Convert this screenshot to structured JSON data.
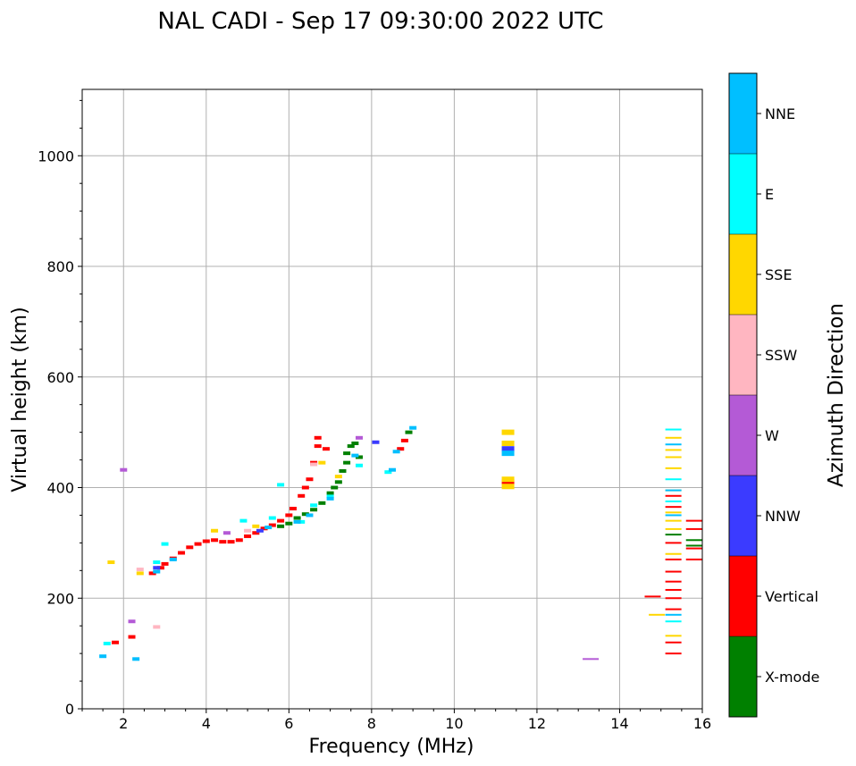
{
  "chart_data": {
    "type": "scatter",
    "title": "NAL CADI - Sep 17 09:30:00 2022 UTC",
    "xlabel": "Frequency (MHz)",
    "ylabel": "Virtual height (km)",
    "xlim": [
      1,
      16
    ],
    "ylim": [
      0,
      1120
    ],
    "x_ticks": [
      2,
      4,
      6,
      8,
      10,
      12,
      14,
      16
    ],
    "y_ticks": [
      0,
      200,
      400,
      600,
      800,
      1000
    ],
    "grid": true,
    "colorbar": {
      "title": "Azimuth Direction",
      "categories": [
        {
          "name": "X-mode",
          "color": "#008000"
        },
        {
          "name": "Vertical",
          "color": "#ff0000"
        },
        {
          "name": "NNW",
          "color": "#3b3bff"
        },
        {
          "name": "W",
          "color": "#b45ad6"
        },
        {
          "name": "SSW",
          "color": "#ffb6c1"
        },
        {
          "name": "SSE",
          "color": "#ffd700"
        },
        {
          "name": "E",
          "color": "#00ffff"
        },
        {
          "name": "NNE",
          "color": "#00bfff"
        }
      ]
    },
    "series": [
      {
        "name": "X-mode",
        "points": [
          [
            5.8,
            330
          ],
          [
            6.0,
            335
          ],
          [
            6.2,
            345
          ],
          [
            6.4,
            352
          ],
          [
            6.6,
            360
          ],
          [
            6.8,
            372
          ],
          [
            7.0,
            390
          ],
          [
            7.1,
            400
          ],
          [
            7.2,
            410
          ],
          [
            7.3,
            430
          ],
          [
            7.4,
            445
          ],
          [
            7.4,
            462
          ],
          [
            7.5,
            475
          ],
          [
            7.6,
            480
          ],
          [
            7.7,
            455
          ],
          [
            8.9,
            500
          ],
          [
            15.3,
            315
          ],
          [
            15.8,
            305
          ],
          [
            15.8,
            295
          ]
        ]
      },
      {
        "name": "Vertical",
        "points": [
          [
            2.7,
            245
          ],
          [
            2.9,
            255
          ],
          [
            3.0,
            262
          ],
          [
            3.2,
            272
          ],
          [
            3.4,
            282
          ],
          [
            3.6,
            292
          ],
          [
            3.8,
            298
          ],
          [
            4.0,
            303
          ],
          [
            4.2,
            305
          ],
          [
            4.4,
            302
          ],
          [
            4.6,
            302
          ],
          [
            4.8,
            305
          ],
          [
            5.0,
            312
          ],
          [
            5.2,
            318
          ],
          [
            5.4,
            326
          ],
          [
            5.6,
            332
          ],
          [
            5.8,
            340
          ],
          [
            6.0,
            350
          ],
          [
            6.1,
            362
          ],
          [
            6.3,
            385
          ],
          [
            6.4,
            400
          ],
          [
            6.5,
            415
          ],
          [
            6.6,
            445
          ],
          [
            6.7,
            475
          ],
          [
            6.7,
            490
          ],
          [
            6.9,
            470
          ],
          [
            8.7,
            470
          ],
          [
            8.8,
            485
          ],
          [
            11.3,
            410
          ],
          [
            14.8,
            203
          ],
          [
            15.3,
            100
          ],
          [
            15.3,
            120
          ],
          [
            15.3,
            180
          ],
          [
            15.3,
            200
          ],
          [
            15.3,
            215
          ],
          [
            15.3,
            230
          ],
          [
            15.3,
            248
          ],
          [
            15.3,
            270
          ],
          [
            15.3,
            300
          ],
          [
            15.3,
            365
          ],
          [
            15.3,
            385
          ],
          [
            15.8,
            270
          ],
          [
            15.8,
            290
          ],
          [
            15.8,
            325
          ],
          [
            15.8,
            340
          ],
          [
            1.8,
            120
          ],
          [
            2.2,
            130
          ]
        ]
      },
      {
        "name": "NNW",
        "points": [
          [
            2.8,
            255
          ],
          [
            5.3,
            322
          ],
          [
            8.1,
            482
          ],
          [
            11.3,
            470
          ]
        ]
      },
      {
        "name": "W",
        "points": [
          [
            2.0,
            432
          ],
          [
            2.2,
            158
          ],
          [
            4.5,
            318
          ],
          [
            7.7,
            490
          ],
          [
            13.3,
            90
          ]
        ]
      },
      {
        "name": "SSW",
        "points": [
          [
            2.4,
            252
          ],
          [
            2.8,
            148
          ],
          [
            5.0,
            322
          ],
          [
            6.6,
            442
          ]
        ]
      },
      {
        "name": "SSE",
        "points": [
          [
            1.7,
            265
          ],
          [
            2.4,
            245
          ],
          [
            4.2,
            322
          ],
          [
            5.2,
            330
          ],
          [
            6.8,
            445
          ],
          [
            7.2,
            420
          ],
          [
            11.3,
            480
          ],
          [
            11.3,
            500
          ],
          [
            11.3,
            415
          ],
          [
            11.3,
            402
          ],
          [
            14.9,
            170
          ],
          [
            15.3,
            132
          ],
          [
            15.3,
            280
          ],
          [
            15.3,
            325
          ],
          [
            15.3,
            340
          ],
          [
            15.3,
            355
          ],
          [
            15.3,
            395
          ],
          [
            15.3,
            435
          ],
          [
            15.3,
            455
          ],
          [
            15.3,
            468
          ],
          [
            15.3,
            490
          ]
        ]
      },
      {
        "name": "E",
        "points": [
          [
            1.6,
            118
          ],
          [
            2.8,
            265
          ],
          [
            3.0,
            298
          ],
          [
            4.9,
            340
          ],
          [
            5.6,
            345
          ],
          [
            5.8,
            405
          ],
          [
            6.3,
            338
          ],
          [
            6.6,
            368
          ],
          [
            7.0,
            384
          ],
          [
            7.7,
            440
          ],
          [
            8.4,
            428
          ],
          [
            15.3,
            158
          ],
          [
            15.3,
            375
          ],
          [
            15.3,
            415
          ],
          [
            15.3,
            505
          ]
        ]
      },
      {
        "name": "NNE",
        "points": [
          [
            1.5,
            95
          ],
          [
            2.3,
            90
          ],
          [
            2.8,
            248
          ],
          [
            3.2,
            270
          ],
          [
            5.5,
            328
          ],
          [
            6.2,
            338
          ],
          [
            6.5,
            350
          ],
          [
            7.0,
            380
          ],
          [
            7.6,
            458
          ],
          [
            8.6,
            465
          ],
          [
            8.5,
            432
          ],
          [
            9.0,
            508
          ],
          [
            11.3,
            462
          ],
          [
            15.3,
            170
          ],
          [
            15.3,
            350
          ],
          [
            15.3,
            395
          ],
          [
            15.3,
            478
          ]
        ]
      }
    ]
  }
}
